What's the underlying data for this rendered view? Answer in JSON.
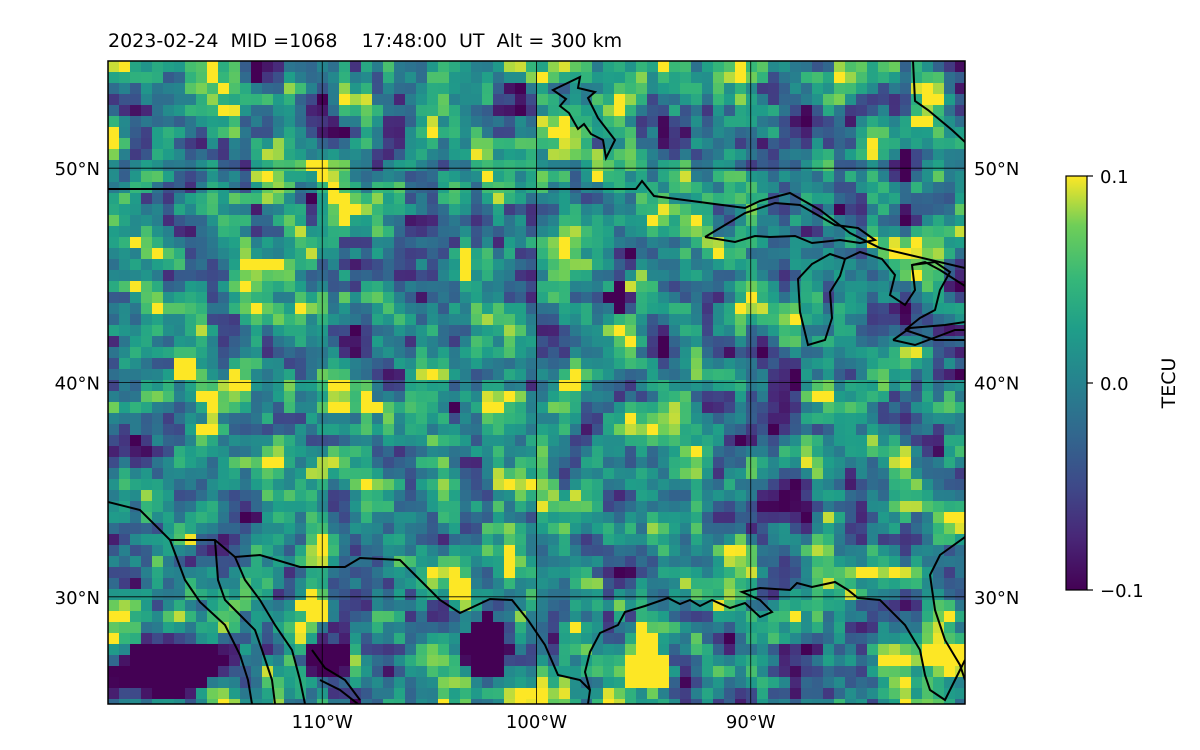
{
  "title": "2023-02-24  MID =1068    17:48:00  UT  Alt = 300 km",
  "map": {
    "lon_range": [
      -120,
      -80
    ],
    "lat_range": [
      25,
      55
    ],
    "lon_ticks": [
      {
        "value": -110,
        "label": "110°W"
      },
      {
        "value": -100,
        "label": "100°W"
      },
      {
        "value": -90,
        "label": "90°W"
      }
    ],
    "lat_ticks": [
      {
        "value": 50,
        "label": "50°N"
      },
      {
        "value": 40,
        "label": "40°N"
      },
      {
        "value": 30,
        "label": "30°N"
      }
    ],
    "grid": true,
    "colormap": "viridis",
    "colors": {
      "low": "#440154",
      "mid": "#21918c",
      "high": "#fde725",
      "coast": "#000000"
    }
  },
  "colorbar": {
    "label": "TECU",
    "ticks": [
      {
        "value": 0.1,
        "label": "0.1"
      },
      {
        "value": 0.0,
        "label": "0.0"
      },
      {
        "value": -0.1,
        "label": "−0.1"
      }
    ],
    "range": [
      -0.1,
      0.1
    ]
  }
}
